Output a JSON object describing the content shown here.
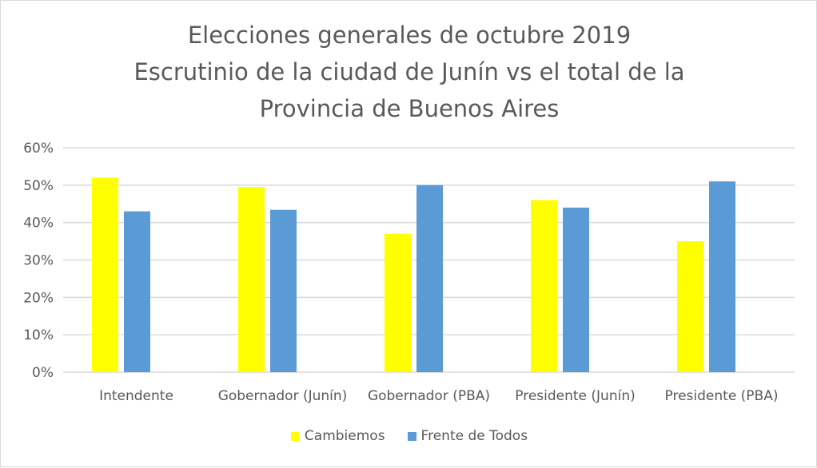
{
  "chart_data": {
    "type": "bar",
    "title": [
      "Elecciones generales de octubre 2019",
      "Escrutinio de la ciudad de Junín vs el total de la",
      "Provincia de Buenos Aires"
    ],
    "categories": [
      "Intendente",
      "Gobernador (Junín)",
      "Gobernador (PBA)",
      "Presidente (Junín)",
      "Presidente (PBA)"
    ],
    "series": [
      {
        "name": "Cambiemos",
        "color": "#FFFF00",
        "values": [
          52,
          49.5,
          37,
          46,
          35
        ]
      },
      {
        "name": "Frente de Todos",
        "color": "#5B9BD5",
        "values": [
          43,
          43.4,
          50,
          44,
          51
        ]
      }
    ],
    "ylim": [
      0,
      60
    ],
    "yticks": [
      "0%",
      "10%",
      "20%",
      "30%",
      "40%",
      "50%",
      "60%"
    ],
    "xlabel": "",
    "ylabel": "",
    "grid": true,
    "legend": "bottom"
  }
}
